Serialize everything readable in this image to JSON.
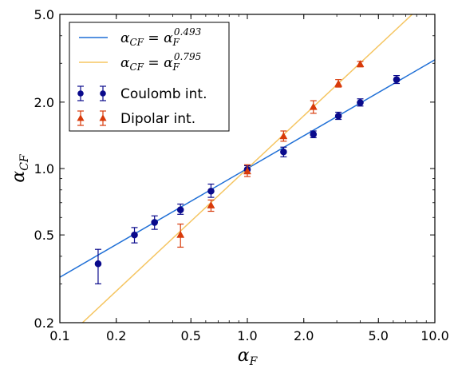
{
  "chart_data": {
    "type": "scatter",
    "title": "",
    "xlabel": "α_F",
    "ylabel": "α_CF",
    "xscale": "log",
    "yscale": "log",
    "xlim": [
      0.1,
      10.0
    ],
    "ylim": [
      0.2,
      5.0
    ],
    "xticks": [
      0.1,
      0.2,
      0.5,
      1.0,
      2.0,
      5.0,
      10.0
    ],
    "xtick_labels": [
      "0.1",
      "0.2",
      "0.5",
      "1.0",
      "2.0",
      "5.0",
      "10.0"
    ],
    "yticks": [
      0.2,
      0.5,
      1.0,
      2.0,
      5.0
    ],
    "ytick_labels": [
      "0.2",
      "0.5",
      "1.0",
      "2.0",
      "5.0"
    ],
    "grid": false,
    "legend_position": "top-left",
    "fits": [
      {
        "label": "α_CF = α_F^0.493",
        "base": "α",
        "sub1": "CF",
        "eq": " = ",
        "sub2": "F",
        "exp": "0.493",
        "exponent": 0.493,
        "color": "#1f6fd6"
      },
      {
        "label": "α_CF = α_F^0.795",
        "base": "α",
        "sub1": "CF",
        "eq": " = ",
        "sub2": "F",
        "exp": "0.795",
        "exponent": 0.795,
        "color": "#f5c561"
      }
    ],
    "series": [
      {
        "name": "Coulomb int.",
        "marker": "circle",
        "color": "#0a0a8c",
        "errcolor": "#0a0a8c",
        "points": [
          {
            "x": 0.16,
            "y": 0.37,
            "lo": 0.3,
            "hi": 0.43
          },
          {
            "x": 0.25,
            "y": 0.5,
            "lo": 0.46,
            "hi": 0.54
          },
          {
            "x": 0.32,
            "y": 0.57,
            "lo": 0.53,
            "hi": 0.61
          },
          {
            "x": 0.44,
            "y": 0.65,
            "lo": 0.62,
            "hi": 0.69
          },
          {
            "x": 0.64,
            "y": 0.79,
            "lo": 0.74,
            "hi": 0.85
          },
          {
            "x": 1.0,
            "y": 0.99,
            "lo": 0.95,
            "hi": 1.03
          },
          {
            "x": 1.56,
            "y": 1.19,
            "lo": 1.13,
            "hi": 1.25
          },
          {
            "x": 2.25,
            "y": 1.43,
            "lo": 1.38,
            "hi": 1.48
          },
          {
            "x": 3.06,
            "y": 1.73,
            "lo": 1.67,
            "hi": 1.8
          },
          {
            "x": 4.0,
            "y": 1.99,
            "lo": 1.92,
            "hi": 2.07
          },
          {
            "x": 6.25,
            "y": 2.53,
            "lo": 2.43,
            "hi": 2.64
          }
        ]
      },
      {
        "name": "Dipolar int.",
        "marker": "triangle",
        "color": "#d83a0a",
        "errcolor": "#d83a0a",
        "points": [
          {
            "x": 0.44,
            "y": 0.5,
            "lo": 0.44,
            "hi": 0.56
          },
          {
            "x": 0.64,
            "y": 0.68,
            "lo": 0.64,
            "hi": 0.72
          },
          {
            "x": 1.0,
            "y": 0.97,
            "lo": 0.92,
            "hi": 1.04
          },
          {
            "x": 1.56,
            "y": 1.4,
            "lo": 1.33,
            "hi": 1.48
          },
          {
            "x": 2.25,
            "y": 1.9,
            "lo": 1.78,
            "hi": 2.03
          },
          {
            "x": 3.06,
            "y": 2.42,
            "lo": 2.34,
            "hi": 2.53
          },
          {
            "x": 4.0,
            "y": 2.97,
            "lo": 2.89,
            "hi": 3.06
          }
        ]
      }
    ]
  }
}
